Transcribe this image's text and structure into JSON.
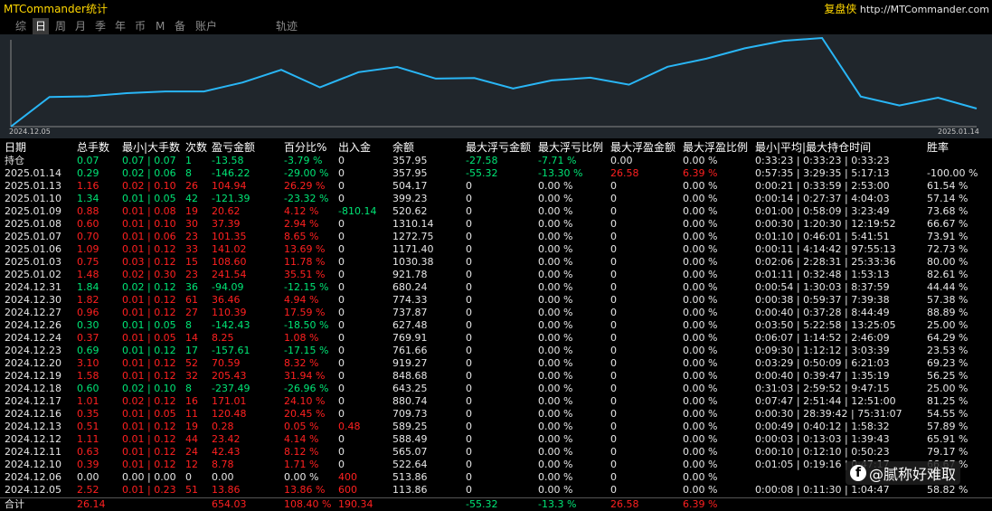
{
  "app": {
    "title": "MTCommander统计",
    "brand_name": "复盘侠",
    "brand_url": "http://MTCommander.com"
  },
  "tabs": [
    {
      "label": "综",
      "active": false
    },
    {
      "label": "日",
      "active": true
    },
    {
      "label": "周",
      "active": false
    },
    {
      "label": "月",
      "active": false
    },
    {
      "label": "季",
      "active": false
    },
    {
      "label": "年",
      "active": false
    },
    {
      "label": "币",
      "active": false
    },
    {
      "label": "M",
      "active": false
    },
    {
      "label": "备",
      "active": false
    },
    {
      "label": "账户",
      "active": false
    },
    {
      "label": "轨迹",
      "active": false
    }
  ],
  "chart": {
    "line_color": "#29b6f6",
    "start_date": "2024.12.05",
    "end_date": "2025.01.14",
    "points": [
      113.86,
      513.86,
      522.64,
      565.07,
      588.49,
      589.25,
      709.73,
      880.74,
      643.25,
      848.68,
      919.27,
      761.66,
      769.91,
      627.48,
      737.87,
      774.33,
      680.24,
      921.78,
      1030.38,
      1171.4,
      1272.75,
      1310.14,
      520.62,
      399.23,
      504.17,
      357.95
    ]
  },
  "headers": [
    "日期",
    "总手数",
    "最小|大手数",
    "次数",
    "盈亏金额",
    "百分比%",
    "出入金",
    "余额",
    "最大浮亏金额",
    "最大浮亏比例",
    "最大浮盈金额",
    "最大浮盈比例",
    "最小|平均|最大持仓时间",
    "胜率"
  ],
  "rows": [
    {
      "date": "持仓",
      "lots": "0.07",
      "minmax": "0.07 | 0.07",
      "count": "1",
      "pnl": "-13.58",
      "pct": "-3.79 %",
      "flow": "0",
      "balance": "357.95",
      "max_fl": "-27.58",
      "max_fl_pct": "-7.71 %",
      "max_fp": "0.00",
      "max_fp_pct": "0.00 %",
      "hold": "0:33:23 | 0:33:23 | 0:33:23",
      "win": "",
      "tone": "g",
      "flow_tone": "w",
      "fl_tone": "g",
      "fp_tone": "w"
    },
    {
      "date": "2025.01.14",
      "lots": "0.29",
      "minmax": "0.02 | 0.06",
      "count": "8",
      "pnl": "-146.22",
      "pct": "-29.00 %",
      "flow": "0",
      "balance": "357.95",
      "max_fl": "-55.32",
      "max_fl_pct": "-13.30 %",
      "max_fp": "26.58",
      "max_fp_pct": "6.39 %",
      "hold": "0:57:35 | 3:29:35 | 5:17:13",
      "win": "-100.00 %",
      "tone": "g",
      "flow_tone": "w",
      "fl_tone": "g",
      "fp_tone": "r"
    },
    {
      "date": "2025.01.13",
      "lots": "1.16",
      "minmax": "0.02 | 0.10",
      "count": "26",
      "pnl": "104.94",
      "pct": "26.29 %",
      "flow": "0",
      "balance": "504.17",
      "max_fl": "0",
      "max_fl_pct": "0.00 %",
      "max_fp": "0",
      "max_fp_pct": "0.00 %",
      "hold": "0:00:21 | 0:33:59 | 2:53:00",
      "win": "61.54 %",
      "tone": "r",
      "flow_tone": "w",
      "fl_tone": "w",
      "fp_tone": "w"
    },
    {
      "date": "2025.01.10",
      "lots": "1.34",
      "minmax": "0.01 | 0.05",
      "count": "42",
      "pnl": "-121.39",
      "pct": "-23.32 %",
      "flow": "0",
      "balance": "399.23",
      "max_fl": "0",
      "max_fl_pct": "0.00 %",
      "max_fp": "0",
      "max_fp_pct": "0.00 %",
      "hold": "0:00:14 | 0:27:37 | 4:04:03",
      "win": "57.14 %",
      "tone": "g",
      "flow_tone": "w",
      "fl_tone": "w",
      "fp_tone": "w"
    },
    {
      "date": "2025.01.09",
      "lots": "0.88",
      "minmax": "0.01 | 0.08",
      "count": "19",
      "pnl": "20.62",
      "pct": "4.12 %",
      "flow": "-810.14",
      "balance": "520.62",
      "max_fl": "0",
      "max_fl_pct": "0.00 %",
      "max_fp": "0",
      "max_fp_pct": "0.00 %",
      "hold": "0:01:00 | 0:58:09 | 3:23:49",
      "win": "73.68 %",
      "tone": "r",
      "flow_tone": "g",
      "fl_tone": "w",
      "fp_tone": "w"
    },
    {
      "date": "2025.01.08",
      "lots": "0.60",
      "minmax": "0.01 | 0.10",
      "count": "30",
      "pnl": "37.39",
      "pct": "2.94 %",
      "flow": "0",
      "balance": "1310.14",
      "max_fl": "0",
      "max_fl_pct": "0.00 %",
      "max_fp": "0",
      "max_fp_pct": "0.00 %",
      "hold": "0:00:30 | 1:20:30 | 12:19:52",
      "win": "66.67 %",
      "tone": "r",
      "flow_tone": "w",
      "fl_tone": "w",
      "fp_tone": "w"
    },
    {
      "date": "2025.01.07",
      "lots": "0.70",
      "minmax": "0.01 | 0.06",
      "count": "23",
      "pnl": "101.35",
      "pct": "8.65 %",
      "flow": "0",
      "balance": "1272.75",
      "max_fl": "0",
      "max_fl_pct": "0.00 %",
      "max_fp": "0",
      "max_fp_pct": "0.00 %",
      "hold": "0:01:10 | 0:46:01 | 5:41:51",
      "win": "73.91 %",
      "tone": "r",
      "flow_tone": "w",
      "fl_tone": "w",
      "fp_tone": "w"
    },
    {
      "date": "2025.01.06",
      "lots": "1.09",
      "minmax": "0.01 | 0.12",
      "count": "33",
      "pnl": "141.02",
      "pct": "13.69 %",
      "flow": "0",
      "balance": "1171.40",
      "max_fl": "0",
      "max_fl_pct": "0.00 %",
      "max_fp": "0",
      "max_fp_pct": "0.00 %",
      "hold": "0:00:11 | 4:14:42 | 97:55:13",
      "win": "72.73 %",
      "tone": "r",
      "flow_tone": "w",
      "fl_tone": "w",
      "fp_tone": "w"
    },
    {
      "date": "2025.01.03",
      "lots": "0.75",
      "minmax": "0.03 | 0.12",
      "count": "15",
      "pnl": "108.60",
      "pct": "11.78 %",
      "flow": "0",
      "balance": "1030.38",
      "max_fl": "0",
      "max_fl_pct": "0.00 %",
      "max_fp": "0",
      "max_fp_pct": "0.00 %",
      "hold": "0:02:06 | 2:28:31 | 25:33:36",
      "win": "80.00 %",
      "tone": "r",
      "flow_tone": "w",
      "fl_tone": "w",
      "fp_tone": "w"
    },
    {
      "date": "2025.01.02",
      "lots": "1.48",
      "minmax": "0.02 | 0.30",
      "count": "23",
      "pnl": "241.54",
      "pct": "35.51 %",
      "flow": "0",
      "balance": "921.78",
      "max_fl": "0",
      "max_fl_pct": "0.00 %",
      "max_fp": "0",
      "max_fp_pct": "0.00 %",
      "hold": "0:01:11 | 0:32:48 | 1:53:13",
      "win": "82.61 %",
      "tone": "r",
      "flow_tone": "w",
      "fl_tone": "w",
      "fp_tone": "w"
    },
    {
      "date": "2024.12.31",
      "lots": "1.84",
      "minmax": "0.02 | 0.12",
      "count": "36",
      "pnl": "-94.09",
      "pct": "-12.15 %",
      "flow": "0",
      "balance": "680.24",
      "max_fl": "0",
      "max_fl_pct": "0.00 %",
      "max_fp": "0",
      "max_fp_pct": "0.00 %",
      "hold": "0:00:54 | 1:30:03 | 8:37:59",
      "win": "44.44 %",
      "tone": "g",
      "flow_tone": "w",
      "fl_tone": "w",
      "fp_tone": "w"
    },
    {
      "date": "2024.12.30",
      "lots": "1.82",
      "minmax": "0.01 | 0.12",
      "count": "61",
      "pnl": "36.46",
      "pct": "4.94 %",
      "flow": "0",
      "balance": "774.33",
      "max_fl": "0",
      "max_fl_pct": "0.00 %",
      "max_fp": "0",
      "max_fp_pct": "0.00 %",
      "hold": "0:00:38 | 0:59:37 | 7:39:38",
      "win": "57.38 %",
      "tone": "r",
      "flow_tone": "w",
      "fl_tone": "w",
      "fp_tone": "w"
    },
    {
      "date": "2024.12.27",
      "lots": "0.96",
      "minmax": "0.01 | 0.12",
      "count": "27",
      "pnl": "110.39",
      "pct": "17.59 %",
      "flow": "0",
      "balance": "737.87",
      "max_fl": "0",
      "max_fl_pct": "0.00 %",
      "max_fp": "0",
      "max_fp_pct": "0.00 %",
      "hold": "0:00:40 | 0:37:28 | 8:44:49",
      "win": "88.89 %",
      "tone": "r",
      "flow_tone": "w",
      "fl_tone": "w",
      "fp_tone": "w"
    },
    {
      "date": "2024.12.26",
      "lots": "0.30",
      "minmax": "0.01 | 0.05",
      "count": "8",
      "pnl": "-142.43",
      "pct": "-18.50 %",
      "flow": "0",
      "balance": "627.48",
      "max_fl": "0",
      "max_fl_pct": "0.00 %",
      "max_fp": "0",
      "max_fp_pct": "0.00 %",
      "hold": "0:03:50 | 5:22:58 | 13:25:05",
      "win": "25.00 %",
      "tone": "g",
      "flow_tone": "w",
      "fl_tone": "w",
      "fp_tone": "w"
    },
    {
      "date": "2024.12.24",
      "lots": "0.37",
      "minmax": "0.01 | 0.05",
      "count": "14",
      "pnl": "8.25",
      "pct": "1.08 %",
      "flow": "0",
      "balance": "769.91",
      "max_fl": "0",
      "max_fl_pct": "0.00 %",
      "max_fp": "0",
      "max_fp_pct": "0.00 %",
      "hold": "0:06:07 | 1:14:52 | 2:46:09",
      "win": "64.29 %",
      "tone": "r",
      "flow_tone": "w",
      "fl_tone": "w",
      "fp_tone": "w"
    },
    {
      "date": "2024.12.23",
      "lots": "0.69",
      "minmax": "0.01 | 0.12",
      "count": "17",
      "pnl": "-157.61",
      "pct": "-17.15 %",
      "flow": "0",
      "balance": "761.66",
      "max_fl": "0",
      "max_fl_pct": "0.00 %",
      "max_fp": "0",
      "max_fp_pct": "0.00 %",
      "hold": "0:09:30 | 1:12:12 | 3:03:39",
      "win": "23.53 %",
      "tone": "g",
      "flow_tone": "w",
      "fl_tone": "w",
      "fp_tone": "w"
    },
    {
      "date": "2024.12.20",
      "lots": "3.10",
      "minmax": "0.01 | 0.12",
      "count": "52",
      "pnl": "70.59",
      "pct": "8.32 %",
      "flow": "0",
      "balance": "919.27",
      "max_fl": "0",
      "max_fl_pct": "0.00 %",
      "max_fp": "0",
      "max_fp_pct": "0.00 %",
      "hold": "0:03:29 | 0:50:09 | 6:21:03",
      "win": "69.23 %",
      "tone": "r",
      "flow_tone": "w",
      "fl_tone": "w",
      "fp_tone": "w"
    },
    {
      "date": "2024.12.19",
      "lots": "1.58",
      "minmax": "0.01 | 0.12",
      "count": "32",
      "pnl": "205.43",
      "pct": "31.94 %",
      "flow": "0",
      "balance": "848.68",
      "max_fl": "0",
      "max_fl_pct": "0.00 %",
      "max_fp": "0",
      "max_fp_pct": "0.00 %",
      "hold": "0:00:40 | 0:39:47 | 1:35:19",
      "win": "56.25 %",
      "tone": "r",
      "flow_tone": "w",
      "fl_tone": "w",
      "fp_tone": "w"
    },
    {
      "date": "2024.12.18",
      "lots": "0.60",
      "minmax": "0.02 | 0.10",
      "count": "8",
      "pnl": "-237.49",
      "pct": "-26.96 %",
      "flow": "0",
      "balance": "643.25",
      "max_fl": "0",
      "max_fl_pct": "0.00 %",
      "max_fp": "0",
      "max_fp_pct": "0.00 %",
      "hold": "0:31:03 | 2:59:52 | 9:47:15",
      "win": "25.00 %",
      "tone": "g",
      "flow_tone": "w",
      "fl_tone": "w",
      "fp_tone": "w"
    },
    {
      "date": "2024.12.17",
      "lots": "1.01",
      "minmax": "0.02 | 0.12",
      "count": "16",
      "pnl": "171.01",
      "pct": "24.10 %",
      "flow": "0",
      "balance": "880.74",
      "max_fl": "0",
      "max_fl_pct": "0.00 %",
      "max_fp": "0",
      "max_fp_pct": "0.00 %",
      "hold": "0:07:47 | 2:51:44 | 12:51:00",
      "win": "81.25 %",
      "tone": "r",
      "flow_tone": "w",
      "fl_tone": "w",
      "fp_tone": "w"
    },
    {
      "date": "2024.12.16",
      "lots": "0.35",
      "minmax": "0.01 | 0.05",
      "count": "11",
      "pnl": "120.48",
      "pct": "20.45 %",
      "flow": "0",
      "balance": "709.73",
      "max_fl": "0",
      "max_fl_pct": "0.00 %",
      "max_fp": "0",
      "max_fp_pct": "0.00 %",
      "hold": "0:00:30 | 28:39:42 | 75:31:07",
      "win": "54.55 %",
      "tone": "r",
      "flow_tone": "w",
      "fl_tone": "w",
      "fp_tone": "w"
    },
    {
      "date": "2024.12.13",
      "lots": "0.51",
      "minmax": "0.01 | 0.12",
      "count": "19",
      "pnl": "0.28",
      "pct": "0.05 %",
      "flow": "0.48",
      "balance": "589.25",
      "max_fl": "0",
      "max_fl_pct": "0.00 %",
      "max_fp": "0",
      "max_fp_pct": "0.00 %",
      "hold": "0:00:49 | 0:40:12 | 1:58:32",
      "win": "57.89 %",
      "tone": "r",
      "flow_tone": "r",
      "fl_tone": "w",
      "fp_tone": "w"
    },
    {
      "date": "2024.12.12",
      "lots": "1.11",
      "minmax": "0.01 | 0.12",
      "count": "44",
      "pnl": "23.42",
      "pct": "4.14 %",
      "flow": "0",
      "balance": "588.49",
      "max_fl": "0",
      "max_fl_pct": "0.00 %",
      "max_fp": "0",
      "max_fp_pct": "0.00 %",
      "hold": "0:00:03 | 0:13:03 | 1:39:43",
      "win": "65.91 %",
      "tone": "r",
      "flow_tone": "w",
      "fl_tone": "w",
      "fp_tone": "w"
    },
    {
      "date": "2024.12.11",
      "lots": "0.63",
      "minmax": "0.01 | 0.12",
      "count": "24",
      "pnl": "42.43",
      "pct": "8.12 %",
      "flow": "0",
      "balance": "565.07",
      "max_fl": "0",
      "max_fl_pct": "0.00 %",
      "max_fp": "0",
      "max_fp_pct": "0.00 %",
      "hold": "0:00:10 | 0:12:10 | 0:50:23",
      "win": "79.17 %",
      "tone": "r",
      "flow_tone": "w",
      "fl_tone": "w",
      "fp_tone": "w"
    },
    {
      "date": "2024.12.10",
      "lots": "0.39",
      "minmax": "0.01 | 0.12",
      "count": "12",
      "pnl": "8.78",
      "pct": "1.71 %",
      "flow": "0",
      "balance": "522.64",
      "max_fl": "0",
      "max_fl_pct": "0.00 %",
      "max_fp": "0",
      "max_fp_pct": "0.00 %",
      "hold": "0:01:05 | 0:19:16 | 0:47:17",
      "win": "66.67 %",
      "tone": "r",
      "flow_tone": "w",
      "fl_tone": "w",
      "fp_tone": "w"
    },
    {
      "date": "2024.12.06",
      "lots": "0.00",
      "minmax": "0.00 | 0.00",
      "count": "0",
      "pnl": "0.00",
      "pct": "0.00 %",
      "flow": "400",
      "balance": "513.86",
      "max_fl": "0",
      "max_fl_pct": "0.00 %",
      "max_fp": "0",
      "max_fp_pct": "0.00 %",
      "hold": "",
      "win": "",
      "tone": "w",
      "flow_tone": "r",
      "fl_tone": "w",
      "fp_tone": "w"
    },
    {
      "date": "2024.12.05",
      "lots": "2.52",
      "minmax": "0.01 | 0.23",
      "count": "51",
      "pnl": "13.86",
      "pct": "13.86 %",
      "flow": "600",
      "balance": "113.86",
      "max_fl": "0",
      "max_fl_pct": "0.00 %",
      "max_fp": "0",
      "max_fp_pct": "0.00 %",
      "hold": "0:00:08 | 0:11:30 | 1:04:47",
      "win": "58.82 %",
      "tone": "r",
      "flow_tone": "r",
      "fl_tone": "w",
      "fp_tone": "w"
    }
  ],
  "total": {
    "date": "合计",
    "lots": "26.14",
    "pnl": "654.03",
    "pct": "108.40 %",
    "flow": "190.34",
    "max_fl": "-55.32",
    "max_fl_pct": "-13.3 %",
    "max_fp": "26.58",
    "max_fp_pct": "6.39 %"
  },
  "watermark": {
    "text": "@腻称好难取"
  }
}
